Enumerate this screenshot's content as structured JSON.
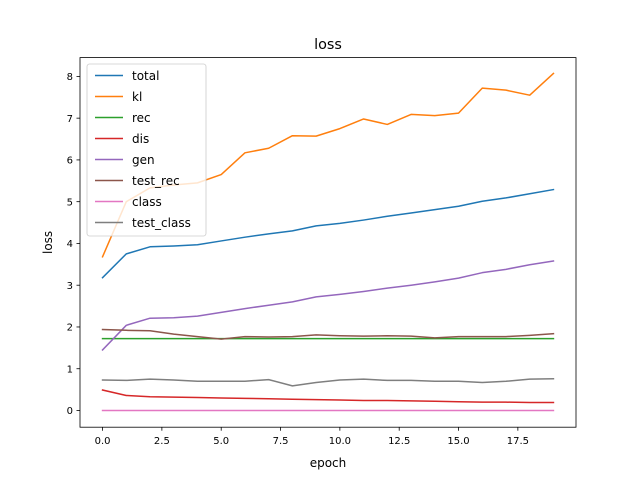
{
  "chart_data": {
    "type": "line",
    "title": "loss",
    "xlabel": "epoch",
    "ylabel": "loss",
    "xlim": [
      -0.95,
      19.95
    ],
    "ylim": [
      -0.4,
      8.45
    ],
    "x_ticks": [
      0,
      2.5,
      5,
      7.5,
      10,
      12.5,
      15,
      17.5
    ],
    "x_tick_labels": [
      "0.0",
      "2.5",
      "5.0",
      "7.5",
      "10.0",
      "12.5",
      "15.0",
      "17.5"
    ],
    "y_ticks": [
      0,
      1,
      2,
      3,
      4,
      5,
      6,
      7,
      8
    ],
    "y_tick_labels": [
      "0",
      "1",
      "2",
      "3",
      "4",
      "5",
      "6",
      "7",
      "8"
    ],
    "grid": false,
    "legend_position": "top-left",
    "x": [
      0,
      1,
      2,
      3,
      4,
      5,
      6,
      7,
      8,
      9,
      10,
      11,
      12,
      13,
      14,
      15,
      16,
      17,
      18,
      19
    ],
    "series": [
      {
        "name": "total",
        "color": "#1f77b4",
        "values": [
          3.18,
          3.75,
          3.92,
          3.94,
          3.97,
          4.06,
          4.15,
          4.23,
          4.3,
          4.42,
          4.48,
          4.56,
          4.65,
          4.73,
          4.81,
          4.89,
          5.01,
          5.09,
          5.19,
          5.29
        ]
      },
      {
        "name": "kl",
        "color": "#ff7f0e",
        "values": [
          3.68,
          5.0,
          5.33,
          5.4,
          5.45,
          5.65,
          6.17,
          6.28,
          6.58,
          6.57,
          6.75,
          6.98,
          6.85,
          7.09,
          7.06,
          7.12,
          7.72,
          7.67,
          7.55,
          8.07
        ]
      },
      {
        "name": "rec",
        "color": "#2ca02c",
        "values": [
          1.72,
          1.72,
          1.72,
          1.72,
          1.72,
          1.72,
          1.72,
          1.72,
          1.72,
          1.72,
          1.72,
          1.72,
          1.72,
          1.72,
          1.72,
          1.72,
          1.72,
          1.72,
          1.72,
          1.72
        ]
      },
      {
        "name": "dis",
        "color": "#d62728",
        "values": [
          0.49,
          0.36,
          0.33,
          0.32,
          0.31,
          0.3,
          0.29,
          0.28,
          0.27,
          0.26,
          0.25,
          0.24,
          0.24,
          0.23,
          0.22,
          0.21,
          0.2,
          0.2,
          0.19,
          0.19
        ]
      },
      {
        "name": "gen",
        "color": "#9467bd",
        "values": [
          1.45,
          2.04,
          2.21,
          2.22,
          2.26,
          2.35,
          2.44,
          2.52,
          2.6,
          2.72,
          2.78,
          2.85,
          2.93,
          3.0,
          3.08,
          3.17,
          3.3,
          3.38,
          3.49,
          3.58
        ]
      },
      {
        "name": "test_rec",
        "color": "#8c564b",
        "values": [
          1.94,
          1.92,
          1.91,
          1.83,
          1.77,
          1.71,
          1.77,
          1.76,
          1.77,
          1.81,
          1.79,
          1.78,
          1.79,
          1.78,
          1.74,
          1.77,
          1.77,
          1.77,
          1.8,
          1.84
        ]
      },
      {
        "name": "class",
        "color": "#e377c2",
        "values": [
          0.0,
          0.0,
          0.0,
          0.0,
          0.0,
          0.0,
          0.0,
          0.0,
          0.0,
          0.0,
          0.0,
          0.0,
          0.0,
          0.0,
          0.0,
          0.0,
          0.0,
          0.0,
          0.0,
          0.0
        ]
      },
      {
        "name": "test_class",
        "color": "#7f7f7f",
        "values": [
          0.73,
          0.72,
          0.75,
          0.73,
          0.7,
          0.7,
          0.7,
          0.74,
          0.59,
          0.67,
          0.73,
          0.75,
          0.72,
          0.72,
          0.7,
          0.7,
          0.67,
          0.7,
          0.75,
          0.76
        ]
      }
    ]
  }
}
